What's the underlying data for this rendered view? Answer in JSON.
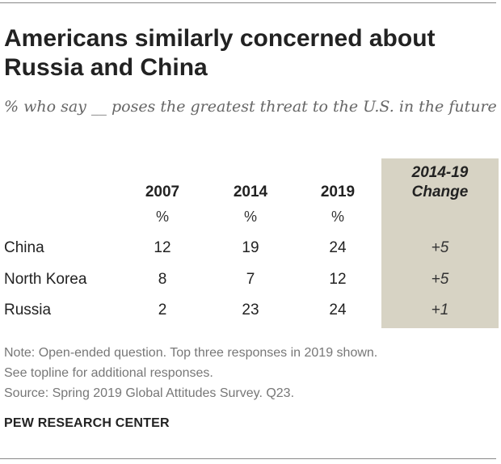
{
  "title": "Americans similarly concerned about Russia and China",
  "subtitle": "% who say __ poses the greatest threat to the U.S. in the future",
  "chart_data": {
    "type": "table",
    "columns": [
      "2007",
      "2014",
      "2019"
    ],
    "unit_row": [
      "%",
      "%",
      "%"
    ],
    "change_header_line1": "2014-19",
    "change_header_line2": "Change",
    "rows": [
      {
        "label": "China",
        "values": [
          "12",
          "19",
          "24"
        ],
        "change": "+5"
      },
      {
        "label": "North Korea",
        "values": [
          "8",
          "7",
          "12"
        ],
        "change": "+5"
      },
      {
        "label": "Russia",
        "values": [
          "2",
          "23",
          "24"
        ],
        "change": "+1"
      }
    ],
    "highlight_color": "#d7d3c4"
  },
  "notes": {
    "line1": "Note: Open-ended question. Top three responses in 2019 shown.",
    "line2": "See topline for additional responses.",
    "source": "Source: Spring 2019 Global Attitudes Survey. Q23."
  },
  "brand": "PEW RESEARCH CENTER"
}
